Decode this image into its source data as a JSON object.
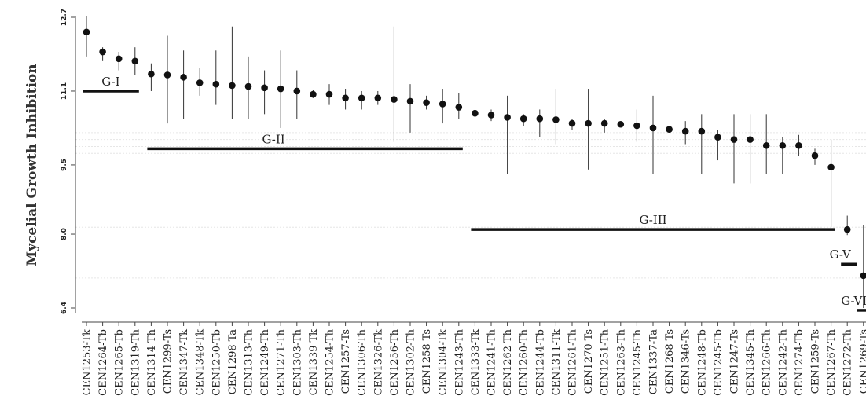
{
  "chart_data": {
    "type": "scatter",
    "title": "",
    "xlabel": "",
    "ylabel": "Mycelial Growth Inhibition",
    "yticks": [
      "12.7",
      "11.1",
      "9.5",
      "8.0",
      "6.4"
    ],
    "ylim": [
      6.4,
      12.7
    ],
    "grid": false,
    "colors": {
      "point": "#111111",
      "errorbar": "#333333",
      "group_bar": "#111111",
      "axis": "#444444"
    },
    "points": [
      {
        "label": "CEN1253-Tk",
        "value": 12.38,
        "low": 11.85,
        "high": 12.72
      },
      {
        "label": "CEN1264-Tb",
        "value": 11.95,
        "low": 11.75,
        "high": 12.05
      },
      {
        "label": "CEN1265-Tb",
        "value": 11.8,
        "low": 11.55,
        "high": 11.95
      },
      {
        "label": "CEN1319-Th",
        "value": 11.75,
        "low": 11.45,
        "high": 12.05
      },
      {
        "label": "CEN1314-Th",
        "value": 11.47,
        "low": 11.1,
        "high": 11.7
      },
      {
        "label": "CEN1299-Ts",
        "value": 11.45,
        "low": 10.4,
        "high": 12.3
      },
      {
        "label": "CEN1347-Tk",
        "value": 11.4,
        "low": 10.5,
        "high": 11.98
      },
      {
        "label": "CEN1348-Tk",
        "value": 11.28,
        "low": 11.0,
        "high": 11.6
      },
      {
        "label": "CEN1250-Tb",
        "value": 11.25,
        "low": 10.8,
        "high": 11.98
      },
      {
        "label": "CEN1298-Ta",
        "value": 11.22,
        "low": 10.5,
        "high": 12.5
      },
      {
        "label": "CEN1313-Th",
        "value": 11.2,
        "low": 10.5,
        "high": 11.85
      },
      {
        "label": "CEN1249-Th",
        "value": 11.17,
        "low": 10.6,
        "high": 11.55
      },
      {
        "label": "CEN1271-Th",
        "value": 11.15,
        "low": 10.3,
        "high": 11.98
      },
      {
        "label": "CEN1303-Th",
        "value": 11.1,
        "low": 10.5,
        "high": 11.55
      },
      {
        "label": "CEN1339-Tk",
        "value": 11.03,
        "low": 10.95,
        "high": 11.12
      },
      {
        "label": "CEN1254-Th",
        "value": 11.03,
        "low": 10.8,
        "high": 11.25
      },
      {
        "label": "CEN1257-Ts",
        "value": 10.95,
        "low": 10.7,
        "high": 11.15
      },
      {
        "label": "CEN1306-Th",
        "value": 10.95,
        "low": 10.7,
        "high": 11.1
      },
      {
        "label": "CEN1326-Tk",
        "value": 10.95,
        "low": 10.8,
        "high": 11.1
      },
      {
        "label": "CEN1256-Th",
        "value": 10.92,
        "low": 10.0,
        "high": 12.5
      },
      {
        "label": "CEN1302-Th",
        "value": 10.88,
        "low": 10.2,
        "high": 11.25
      },
      {
        "label": "CEN1258-Ts",
        "value": 10.85,
        "low": 10.7,
        "high": 11.0
      },
      {
        "label": "CEN1304-Tk",
        "value": 10.82,
        "low": 10.4,
        "high": 11.15
      },
      {
        "label": "CEN1243-Th",
        "value": 10.75,
        "low": 10.5,
        "high": 11.05
      },
      {
        "label": "CEN1333-Tk",
        "value": 10.62,
        "low": 10.6,
        "high": 10.65
      },
      {
        "label": "CEN1241-Th",
        "value": 10.58,
        "low": 10.45,
        "high": 10.7
      },
      {
        "label": "CEN1262-Th",
        "value": 10.53,
        "low": 9.3,
        "high": 11.0
      },
      {
        "label": "CEN1260-Th",
        "value": 10.5,
        "low": 10.35,
        "high": 10.6
      },
      {
        "label": "CEN1244-Tb",
        "value": 10.5,
        "low": 10.1,
        "high": 10.7
      },
      {
        "label": "CEN1311-Tk",
        "value": 10.48,
        "low": 9.95,
        "high": 11.15
      },
      {
        "label": "CEN1261-Th",
        "value": 10.4,
        "low": 10.25,
        "high": 10.5
      },
      {
        "label": "CEN1270-Ts",
        "value": 10.4,
        "low": 9.4,
        "high": 11.15
      },
      {
        "label": "CEN1251-Th",
        "value": 10.4,
        "low": 10.2,
        "high": 10.5
      },
      {
        "label": "CEN1263-Th",
        "value": 10.38,
        "low": 10.35,
        "high": 10.4
      },
      {
        "label": "CEN1245-Th",
        "value": 10.35,
        "low": 10.0,
        "high": 10.7
      },
      {
        "label": "CEN1337-Ta",
        "value": 10.3,
        "low": 9.3,
        "high": 11.0
      },
      {
        "label": "CEN1268-Ts",
        "value": 10.27,
        "low": 10.25,
        "high": 10.3
      },
      {
        "label": "CEN1346-Ts",
        "value": 10.23,
        "low": 9.95,
        "high": 10.45
      },
      {
        "label": "CEN1248-Tb",
        "value": 10.23,
        "low": 9.3,
        "high": 10.6
      },
      {
        "label": "CEN1245-Tb",
        "value": 10.1,
        "low": 9.6,
        "high": 10.25
      },
      {
        "label": "CEN1247-Ts",
        "value": 10.05,
        "low": 9.1,
        "high": 10.6
      },
      {
        "label": "CEN1345-Th",
        "value": 10.05,
        "low": 9.1,
        "high": 10.6
      },
      {
        "label": "CEN1266-Th",
        "value": 9.92,
        "low": 9.3,
        "high": 10.6
      },
      {
        "label": "CEN1242-Th",
        "value": 9.92,
        "low": 9.3,
        "high": 10.1
      },
      {
        "label": "CEN1274-Tb",
        "value": 9.92,
        "low": 9.7,
        "high": 10.15
      },
      {
        "label": "CEN1259-Ts",
        "value": 9.7,
        "low": 9.5,
        "high": 9.85
      },
      {
        "label": "CEN1267-Th",
        "value": 9.45,
        "low": 8.15,
        "high": 10.05
      },
      {
        "label": "CEN1272-Th",
        "value": 8.1,
        "low": 7.98,
        "high": 8.4
      },
      {
        "label": "CEN1269-Ts",
        "value": 7.1,
        "low": 6.4,
        "high": 8.2
      }
    ],
    "groups": [
      {
        "label": "G-I",
        "from": "CEN1253-Tk",
        "to": "CEN1319-Th",
        "y": 11.1
      },
      {
        "label": "G-II",
        "from": "CEN1314-Th",
        "to": "CEN1243-Th",
        "y": 9.85
      },
      {
        "label": "G-III",
        "from": "CEN1333-Tk",
        "to": "CEN1267-Th",
        "y": 8.1
      },
      {
        "label": "G-V",
        "from": "CEN1272-Th",
        "to": "CEN1272-Th",
        "y": 7.35
      },
      {
        "label": "G-VI",
        "from": "CEN1269-Ts",
        "to": "CEN1269-Ts",
        "y": 6.35
      }
    ]
  }
}
